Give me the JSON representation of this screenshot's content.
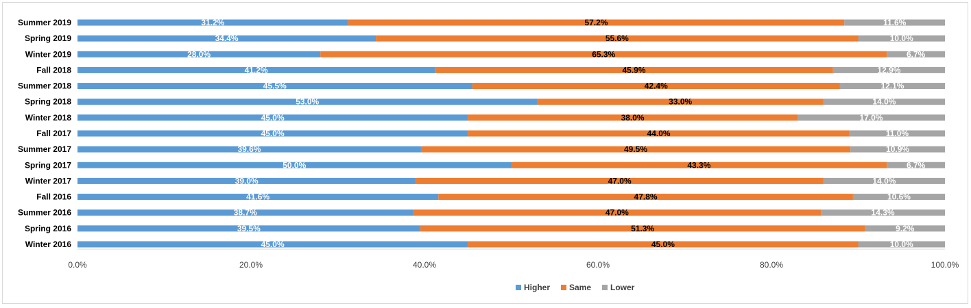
{
  "chart_data": {
    "type": "bar",
    "orientation": "horizontal",
    "stacked": "percent",
    "categories": [
      "Summer 2019",
      "Spring 2019",
      "Winter 2019",
      "Fall 2018",
      "Summer 2018",
      "Spring 2018",
      "Winter 2018",
      "Fall 2017",
      "Summer 2017",
      "Spring 2017",
      "Winter 2017",
      "Fall 2016",
      "Summer 2016",
      "Spring 2016",
      "Winter 2016"
    ],
    "series": [
      {
        "name": "Higher",
        "color": "#5b9bd5",
        "label_color": "#ffffff",
        "values": [
          31.2,
          34.4,
          28.0,
          41.2,
          45.5,
          53.0,
          45.0,
          45.0,
          39.6,
          50.0,
          39.0,
          41.6,
          38.7,
          39.5,
          45.0
        ],
        "labels": [
          "31.2%",
          "34.4%",
          "28.0%",
          "41.2%",
          "45.5%",
          "53.0%",
          "45.0%",
          "45.0%",
          "39.6%",
          "50.0%",
          "39.0%",
          "41.6%",
          "38.7%",
          "39.5%",
          "45.0%"
        ]
      },
      {
        "name": "Same",
        "color": "#ed7d31",
        "label_color": "#000000",
        "values": [
          57.2,
          55.6,
          65.3,
          45.9,
          42.4,
          33.0,
          38.0,
          44.0,
          49.5,
          43.3,
          47.0,
          47.8,
          47.0,
          51.3,
          45.0
        ],
        "labels": [
          "57.2%",
          "55.6%",
          "65.3%",
          "45.9%",
          "42.4%",
          "33.0%",
          "38.0%",
          "44.0%",
          "49.5%",
          "43.3%",
          "47.0%",
          "47.8%",
          "47.0%",
          "51.3%",
          "45.0%"
        ]
      },
      {
        "name": "Lower",
        "color": "#a5a5a5",
        "label_color": "#ffffff",
        "values": [
          11.6,
          10.0,
          6.7,
          12.9,
          12.1,
          14.0,
          17.0,
          11.0,
          10.9,
          6.7,
          14.0,
          10.6,
          14.3,
          9.2,
          10.0
        ],
        "labels": [
          "11.6%",
          "10.0%",
          "6.7%",
          "12.9%",
          "12.1%",
          "14.0%",
          "17.0%",
          "11.0%",
          "10.9%",
          "6.7%",
          "14.0%",
          "10.6%",
          "14.3%",
          "9.2%",
          "10.0%"
        ]
      }
    ],
    "xlim": [
      0,
      100
    ],
    "xticks": [
      0,
      20,
      40,
      60,
      80,
      100
    ],
    "xtick_labels": [
      "0.0%",
      "20.0%",
      "40.0%",
      "60.0%",
      "80.0%",
      "100.0%"
    ],
    "legend_position": "bottom",
    "grid": false,
    "title": "",
    "xlabel": "",
    "ylabel": ""
  }
}
